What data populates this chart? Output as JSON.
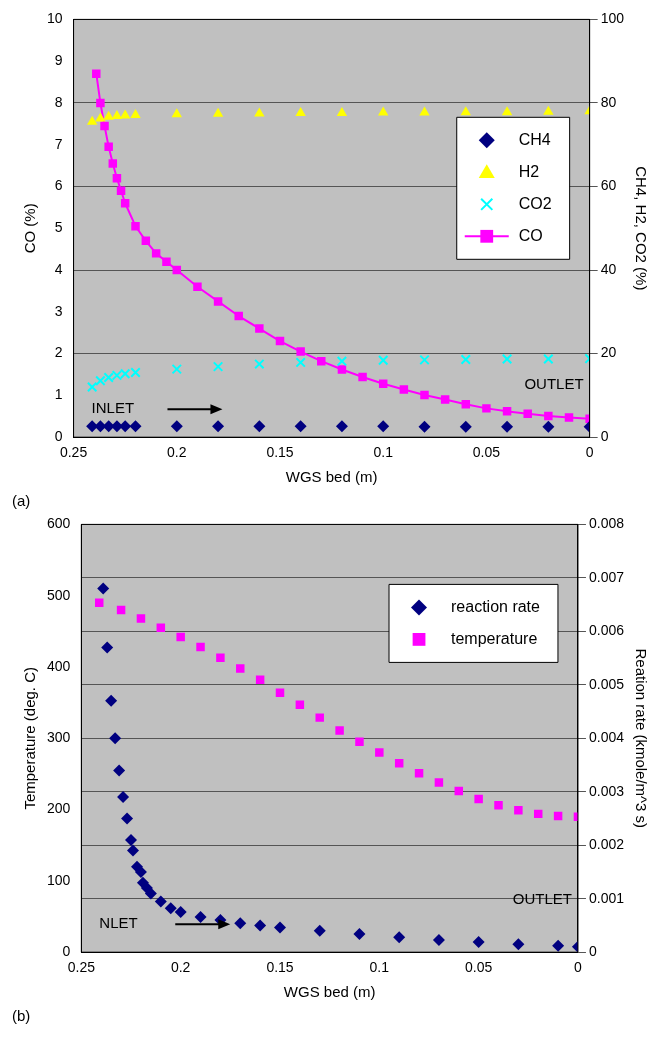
{
  "chart_data": [
    {
      "type": "scatter",
      "xlabel": "WGS bed (m)",
      "ylabel": "CO (%)",
      "y2label": "CH4, H2, CO2 (%)",
      "xlim": [
        0.25,
        0
      ],
      "xticks": [
        0.25,
        0.2,
        0.15,
        0.1,
        0.05,
        0
      ],
      "ylim": [
        0,
        10
      ],
      "yticks": [
        0,
        1,
        2,
        3,
        4,
        5,
        6,
        7,
        8,
        9,
        10
      ],
      "y2lim": [
        0,
        100
      ],
      "y2ticks": [
        0,
        20,
        40,
        60,
        80,
        100
      ],
      "grid": "y2",
      "legend": "right",
      "series": [
        {
          "name": "CH4",
          "color": "#000080",
          "marker": "diamond",
          "axis": "y2",
          "x": [
            0.241,
            0.237,
            0.233,
            0.229,
            0.225,
            0.22,
            0.2,
            0.18,
            0.16,
            0.14,
            0.12,
            0.1,
            0.08,
            0.06,
            0.04,
            0.02,
            0
          ],
          "values": [
            2.6,
            2.6,
            2.6,
            2.6,
            2.6,
            2.6,
            2.6,
            2.6,
            2.6,
            2.6,
            2.6,
            2.6,
            2.5,
            2.5,
            2.5,
            2.5,
            2.5
          ]
        },
        {
          "name": "H2",
          "color": "#ffff00",
          "marker": "triangle",
          "axis": "y2",
          "x": [
            0.241,
            0.237,
            0.233,
            0.229,
            0.225,
            0.22,
            0.2,
            0.18,
            0.16,
            0.14,
            0.12,
            0.1,
            0.08,
            0.06,
            0.04,
            0.02,
            0
          ],
          "values": [
            75.5,
            76.3,
            76.7,
            76.9,
            77,
            77.1,
            77.3,
            77.4,
            77.5,
            77.6,
            77.6,
            77.7,
            77.7,
            77.8,
            77.8,
            77.9,
            78
          ]
        },
        {
          "name": "CO2",
          "color": "#00ffff",
          "marker": "cross",
          "axis": "y2",
          "x": [
            0.241,
            0.237,
            0.233,
            0.229,
            0.225,
            0.22,
            0.2,
            0.18,
            0.16,
            0.14,
            0.12,
            0.1,
            0.08,
            0.06,
            0.04,
            0.02,
            0
          ],
          "values": [
            12,
            13.5,
            14.3,
            14.8,
            15.2,
            15.5,
            16.3,
            16.9,
            17.5,
            17.9,
            18.2,
            18.4,
            18.5,
            18.6,
            18.7,
            18.7,
            18.8
          ]
        },
        {
          "name": "CO",
          "type": "line",
          "color": "#ff00ff",
          "marker": "square",
          "line_style": "solid",
          "x": [
            0.239,
            0.237,
            0.235,
            0.233,
            0.231,
            0.229,
            0.227,
            0.225,
            0.22,
            0.215,
            0.21,
            0.205,
            0.2,
            0.19,
            0.18,
            0.17,
            0.16,
            0.15,
            0.14,
            0.13,
            0.12,
            0.11,
            0.1,
            0.09,
            0.08,
            0.07,
            0.06,
            0.05,
            0.04,
            0.03,
            0.02,
            0.01,
            0
          ],
          "values": [
            8.7,
            8,
            7.45,
            6.95,
            6.55,
            6.2,
            5.9,
            5.6,
            5.05,
            4.7,
            4.4,
            4.2,
            4,
            3.6,
            3.25,
            2.9,
            2.6,
            2.3,
            2.05,
            1.82,
            1.62,
            1.44,
            1.28,
            1.14,
            1.01,
            0.9,
            0.79,
            0.69,
            0.62,
            0.56,
            0.51,
            0.47,
            0.44
          ]
        }
      ],
      "annotations": [
        "INLET",
        "OUTLET",
        "(a)"
      ]
    },
    {
      "type": "scatter",
      "xlabel": "WGS bed (m)",
      "ylabel": "Temperature (deg. C)",
      "y2label": "Reation rate (kmole/m^3 s)",
      "xlim": [
        0.25,
        0
      ],
      "xticks": [
        0.25,
        0.2,
        0.15,
        0.1,
        0.05,
        0
      ],
      "ylim": [
        0,
        600
      ],
      "yticks": [
        0,
        100,
        200,
        300,
        400,
        500,
        600
      ],
      "y2lim": [
        0,
        0.008
      ],
      "y2ticks": [
        0,
        0.001,
        0.002,
        0.003,
        0.004,
        0.005,
        0.006,
        0.007,
        0.008
      ],
      "grid": "y2",
      "legend": "top right",
      "series": [
        {
          "name": "reaction rate",
          "color": "#000080",
          "marker": "diamond",
          "axis": "y2",
          "x": [
            0.239,
            0.237,
            0.235,
            0.233,
            0.231,
            0.229,
            0.227,
            0.225,
            0.224,
            0.222,
            0.22,
            0.219,
            0.217,
            0.215,
            0.21,
            0.205,
            0.2,
            0.19,
            0.18,
            0.17,
            0.16,
            0.15,
            0.13,
            0.11,
            0.09,
            0.07,
            0.05,
            0.03,
            0.01,
            0
          ],
          "values": [
            0.0068,
            0.0057,
            0.0047,
            0.004,
            0.0034,
            0.0029,
            0.0025,
            0.0021,
            0.0019,
            0.0016,
            0.0015,
            0.0013,
            0.0012,
            0.0011,
            0.00095,
            0.00082,
            0.00075,
            0.00066,
            0.0006,
            0.00054,
            0.0005,
            0.00046,
            0.0004,
            0.00034,
            0.00028,
            0.00023,
            0.00019,
            0.00015,
            0.00012,
            0.0001
          ]
        },
        {
          "name": "temperature",
          "color": "#ff00ff",
          "marker": "square",
          "x": [
            0.241,
            0.23,
            0.22,
            0.21,
            0.2,
            0.19,
            0.18,
            0.17,
            0.16,
            0.15,
            0.14,
            0.13,
            0.12,
            0.11,
            0.1,
            0.09,
            0.08,
            0.07,
            0.06,
            0.05,
            0.04,
            0.03,
            0.02,
            0.01,
            0
          ],
          "values": [
            490,
            480,
            468,
            455,
            442,
            428,
            413,
            398,
            382,
            364,
            347,
            329,
            311,
            295,
            280,
            265,
            251,
            238,
            226,
            215,
            206,
            199,
            194,
            191,
            190
          ]
        }
      ],
      "annotations": [
        "NLET",
        "OUTLET",
        "(b)"
      ]
    }
  ]
}
